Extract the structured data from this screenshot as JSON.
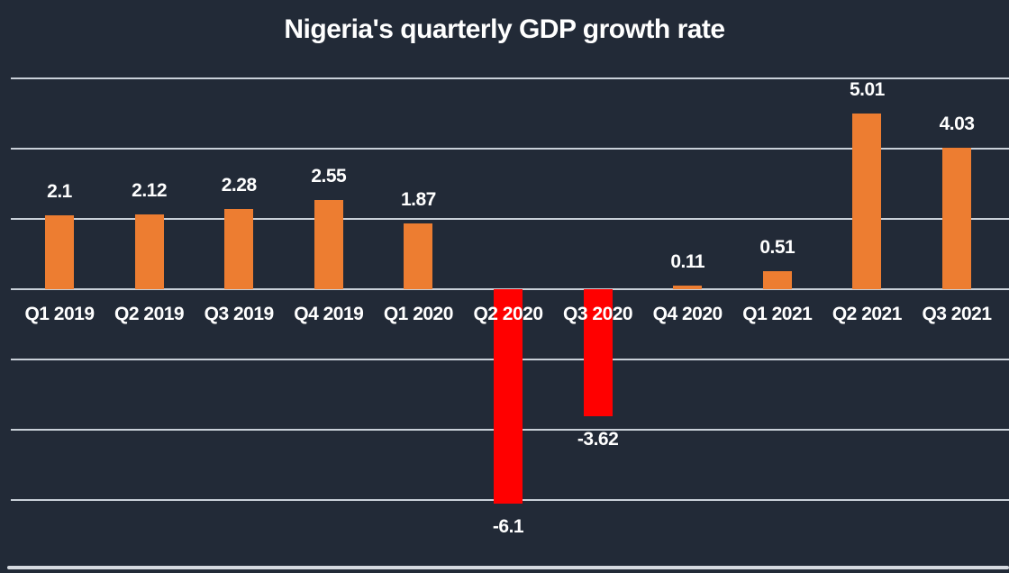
{
  "chart_data": {
    "type": "bar",
    "title": "Nigeria's quarterly GDP growth rate",
    "categories": [
      "Q1 2019",
      "Q2 2019",
      "Q3 2019",
      "Q4 2019",
      "Q1 2020",
      "Q2 2020",
      "Q3 2020",
      "Q4 2020",
      "Q1 2021",
      "Q2 2021",
      "Q3 2021"
    ],
    "values": [
      2.1,
      2.12,
      2.28,
      2.55,
      1.87,
      -6.1,
      -3.62,
      0.11,
      0.51,
      5.01,
      4.03
    ],
    "value_labels": [
      "2.1",
      "2.12",
      "2.28",
      "2.55",
      "1.87",
      "-6.1",
      "-3.62",
      "0.11",
      "0.51",
      "5.01",
      "4.03"
    ],
    "xlabel": "",
    "ylabel": "",
    "ylim": [
      -8,
      6
    ],
    "grid": true,
    "legend": false,
    "gridline_values": [
      6,
      4,
      2,
      0,
      -2,
      -4,
      -6,
      -8
    ],
    "colors": {
      "positive_bar": "#ED7D31",
      "negative_bar": "#FF0000",
      "background": "#222A37",
      "gridline": "#C9D0D8",
      "bottom_border": "#D6DAE0",
      "text": "#FFFFFF"
    }
  }
}
